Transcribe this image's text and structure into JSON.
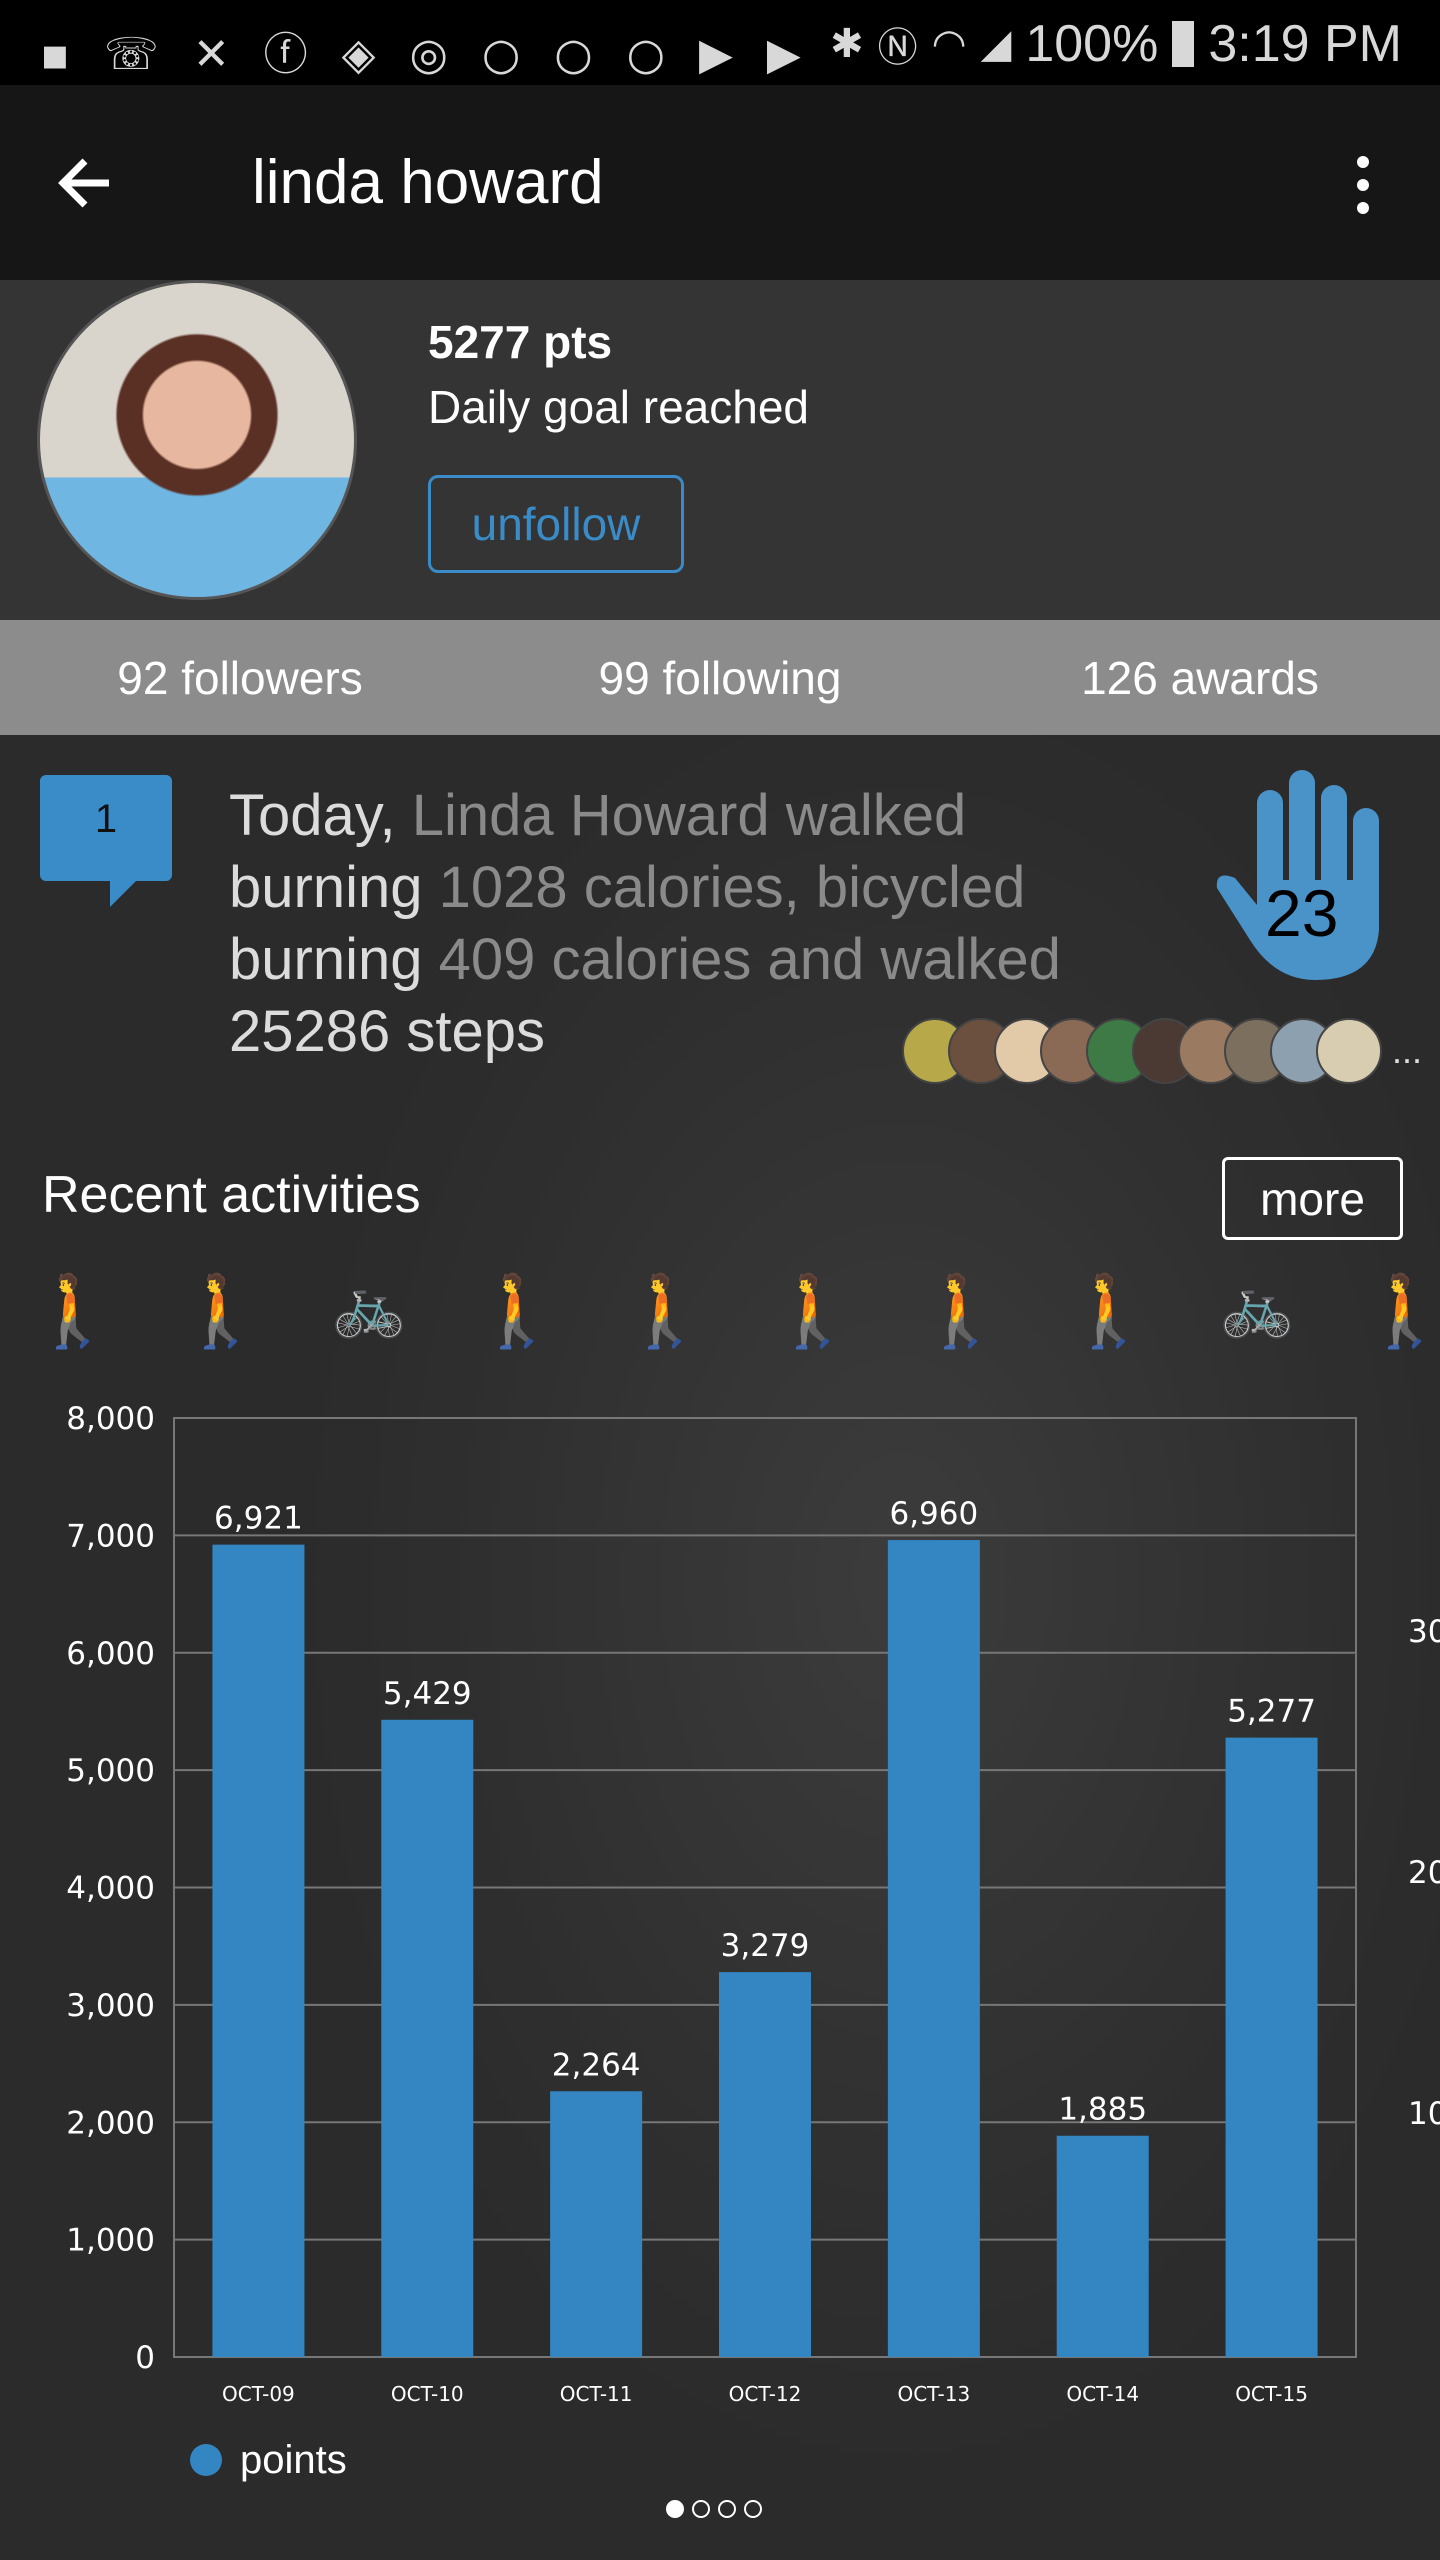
{
  "status_bar": {
    "notification_icons": [
      "messages-icon",
      "wifi-calling-icon",
      "missed-call-icon",
      "facebook-icon",
      "shield-icon",
      "power-icon",
      "chat-icon",
      "chat-icon",
      "chat-icon",
      "youtube-icon",
      "youtube-icon"
    ],
    "system_icons": [
      "bluetooth-icon",
      "nfc-icon",
      "wifi-icon",
      "signal-icon"
    ],
    "battery": "100%",
    "time": "3:19 PM"
  },
  "app_bar": {
    "title": "linda howard",
    "back_icon": "arrow-left-icon",
    "menu_icon": "more-vert-icon"
  },
  "profile": {
    "points": "5277 pts",
    "goal_status": "Daily goal reached",
    "unfollow_label": "unfollow"
  },
  "stats": {
    "followers": "92 followers",
    "following": "99 following",
    "awards": "126 awards"
  },
  "activity": {
    "comment_count": "1",
    "parts": [
      "Today,",
      " Linda Howard walked ",
      "burning",
      " 1028 calories, bicycled ",
      "burning",
      " 409 calories and walked ",
      "25286 steps"
    ],
    "high_five_count": "23",
    "more_dots": "...",
    "accent": "#3a8cc8"
  },
  "recent": {
    "title": "Recent activities",
    "more_label": "more",
    "activity_icons": [
      "walk",
      "walk",
      "bike",
      "walk",
      "walk",
      "walk",
      "walk",
      "walk",
      "bike",
      "walk"
    ]
  },
  "chart_data": {
    "type": "bar",
    "categories": [
      "OCT-09",
      "OCT-10",
      "OCT-11",
      "OCT-12",
      "OCT-13",
      "OCT-14",
      "OCT-15"
    ],
    "series": [
      {
        "name": "points",
        "values": [
          6921,
          5429,
          2264,
          3279,
          6960,
          1885,
          5277
        ],
        "labels": [
          "6,921",
          "5,429",
          "2,264",
          "3,279",
          "6,960",
          "1,885",
          "5,277"
        ],
        "color": "#3386c2"
      }
    ],
    "yticks": [
      "0",
      "1,000",
      "2,000",
      "3,000",
      "4,000",
      "5,000",
      "6,000",
      "7,000",
      "8,000"
    ],
    "ylim": [
      0,
      8000
    ],
    "grid": true,
    "legend": "bottom-left",
    "next_chart_ticks": [
      "30",
      "20",
      "10"
    ]
  },
  "pager": {
    "pages": 4,
    "current": 1
  }
}
